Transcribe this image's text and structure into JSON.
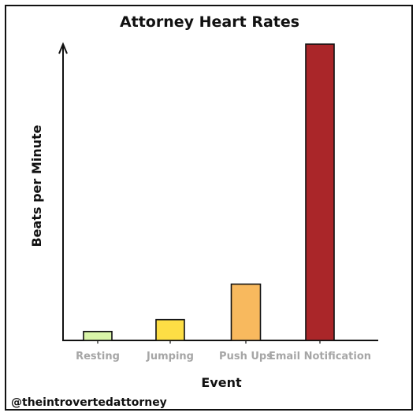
{
  "chart_data": {
    "type": "bar",
    "title": "Attorney Heart Rates",
    "xlabel": "Event",
    "ylabel": "Beats per Minute",
    "categories": [
      "Resting",
      "Jumping",
      "Push Ups",
      "Email Notification"
    ],
    "values": [
      3,
      7,
      19,
      100
    ],
    "ylim": [
      0,
      100
    ],
    "colors": [
      "#d9f5a8",
      "#fdde45",
      "#f8b95e",
      "#aa2629"
    ],
    "bar_stroke": "#111111",
    "grid": false,
    "legend": "none"
  },
  "credit": "@theintrovertedattorney"
}
